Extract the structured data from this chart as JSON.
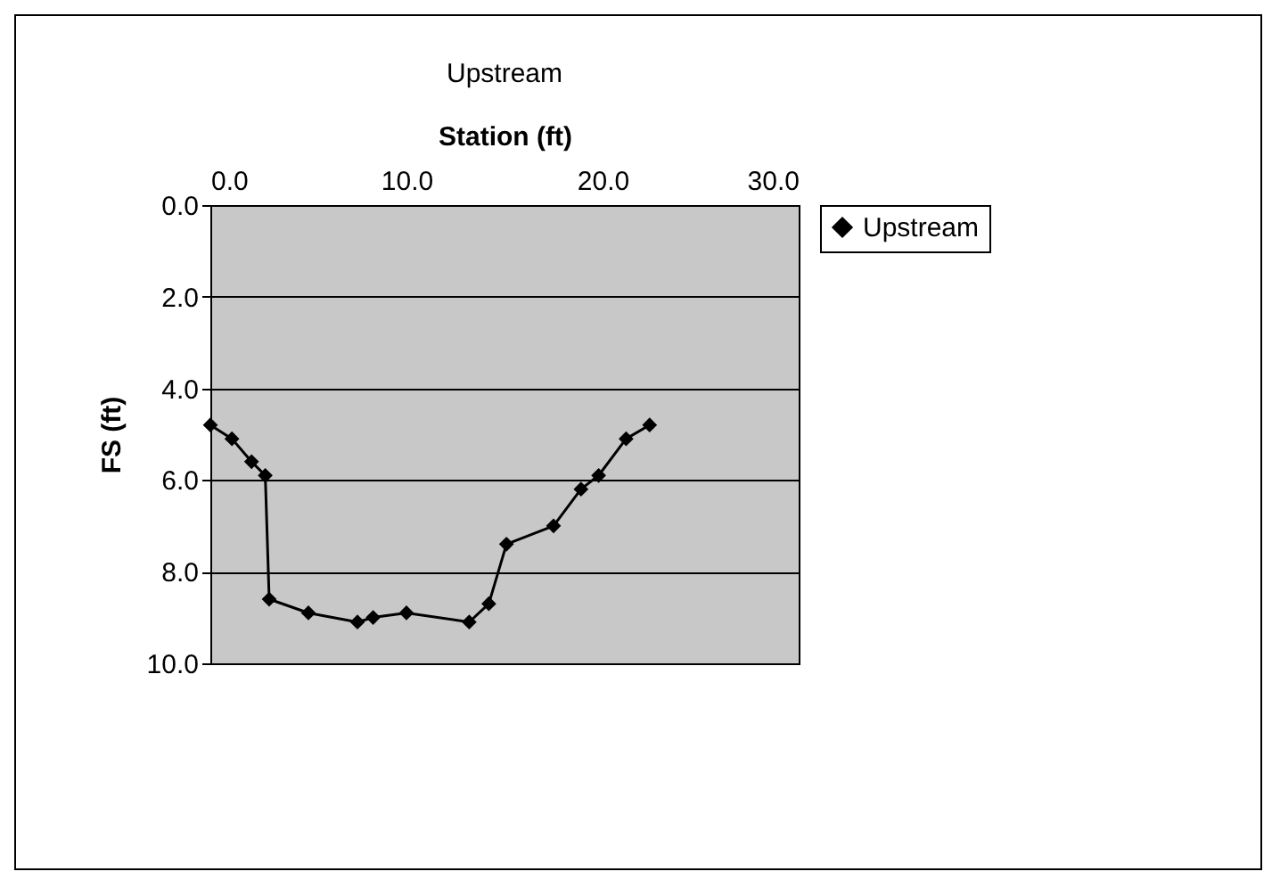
{
  "chart_data": {
    "type": "line",
    "title": "Upstream",
    "xlabel": "Station (ft)",
    "ylabel": "FS (ft)",
    "xlim": [
      0,
      30
    ],
    "xticks": [
      {
        "value": 0,
        "label": "0.0"
      },
      {
        "value": 10,
        "label": "10.0"
      },
      {
        "value": 20,
        "label": "20.0"
      },
      {
        "value": 30,
        "label": "30.0"
      }
    ],
    "ylim": [
      10,
      0
    ],
    "yticks": [
      {
        "value": 0,
        "label": "0.0"
      },
      {
        "value": 2,
        "label": "2.0"
      },
      {
        "value": 4,
        "label": "4.0"
      },
      {
        "value": 6,
        "label": "6.0"
      },
      {
        "value": 8,
        "label": "8.0"
      },
      {
        "value": 10,
        "label": "10.0"
      }
    ],
    "grid": "y",
    "legend": "right",
    "marker": "diamond",
    "series": [
      {
        "name": "Upstream",
        "color": "#000000",
        "x": [
          0,
          1.1,
          2.1,
          2.8,
          3.0,
          5.0,
          7.5,
          8.3,
          10.0,
          13.2,
          14.2,
          15.1,
          17.5,
          18.9,
          19.8,
          21.2,
          22.4
        ],
        "values": [
          4.8,
          5.1,
          5.6,
          5.9,
          8.6,
          8.9,
          9.1,
          9.0,
          8.9,
          9.1,
          8.7,
          7.4,
          7.0,
          6.2,
          5.9,
          5.1,
          4.8
        ]
      }
    ]
  }
}
